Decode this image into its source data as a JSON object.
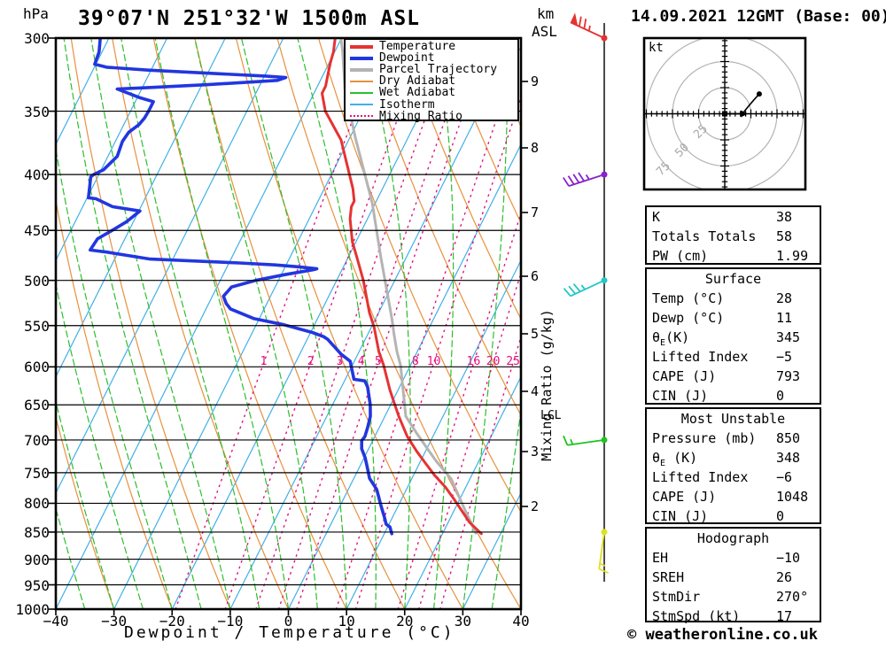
{
  "header": {
    "left_axis_unit": "hPa",
    "title": "39°07'N 251°32'W 1500m ASL",
    "right_axis_unit_line1": "km",
    "right_axis_unit_line2": "ASL",
    "datetime": "14.09.2021 12GMT (Base: 00)"
  },
  "axes": {
    "pressure_ticks": [
      300,
      350,
      400,
      450,
      500,
      550,
      600,
      650,
      700,
      750,
      800,
      850,
      900,
      950,
      1000
    ],
    "temperature_ticks": [
      -40,
      -30,
      -20,
      -10,
      0,
      10,
      20,
      30,
      40
    ],
    "km_ticks": [
      9,
      8,
      7,
      6,
      5,
      4,
      3,
      2
    ],
    "x_label": "Dewpoint / Temperature (°C)",
    "right_label": "Mixing Ratio (g/kg)",
    "lcl_label": "LCL"
  },
  "legend": {
    "items": [
      {
        "label": "Temperature",
        "color": "#e63232",
        "weight": 4,
        "dash": "solid"
      },
      {
        "label": "Dewpoint",
        "color": "#2236df",
        "weight": 4,
        "dash": "solid"
      },
      {
        "label": "Parcel Trajectory",
        "color": "#b4b4b4",
        "weight": 4,
        "dash": "solid"
      },
      {
        "label": "Dry Adiabat",
        "color": "#e8913d",
        "weight": 2,
        "dash": "solid"
      },
      {
        "label": "Wet Adiabat",
        "color": "#2dbe2d",
        "weight": 2,
        "dash": "solid"
      },
      {
        "label": "Isotherm",
        "color": "#42b0e8",
        "weight": 2,
        "dash": "solid"
      },
      {
        "label": "Mixing Ratio",
        "color": "#e4117e",
        "weight": 2,
        "dash": "dotted"
      }
    ]
  },
  "chart_data": {
    "type": "line",
    "subtype": "skew-t-log-p-sounding",
    "title": "39°07'N 251°32'W 1500m ASL",
    "xlabel": "Dewpoint / Temperature (°C)",
    "ylabel": "hPa",
    "pressure_range_hpa": [
      300,
      1000
    ],
    "temperature_range_c": [
      -40,
      40
    ],
    "km_asl_ticks": [
      2,
      3,
      4,
      5,
      6,
      7,
      8,
      9
    ],
    "series": [
      {
        "name": "Temperature",
        "color": "#e63232",
        "points_p_t": [
          [
            853,
            26.7
          ],
          [
            833,
            23.7
          ],
          [
            792,
            18.9
          ],
          [
            773,
            16.5
          ],
          [
            754,
            13.6
          ],
          [
            735,
            11.0
          ],
          [
            717,
            8.5
          ],
          [
            695,
            5.6
          ],
          [
            666,
            2.4
          ],
          [
            645,
            0.2
          ],
          [
            630,
            -1.4
          ],
          [
            598,
            -4.6
          ],
          [
            581,
            -6.6
          ],
          [
            552,
            -9.5
          ],
          [
            535,
            -11.6
          ],
          [
            500,
            -15.4
          ],
          [
            474,
            -18.8
          ],
          [
            461,
            -20.6
          ],
          [
            439,
            -23.0
          ],
          [
            428,
            -23.8
          ],
          [
            423,
            -23.8
          ],
          [
            412,
            -25.1
          ],
          [
            387,
            -28.9
          ],
          [
            372,
            -31.3
          ],
          [
            350,
            -36.5
          ],
          [
            337,
            -38.6
          ],
          [
            332,
            -38.6
          ],
          [
            324,
            -39.2
          ],
          [
            316,
            -39.8
          ],
          [
            309,
            -40.2
          ],
          [
            300,
            -41.1
          ]
        ]
      },
      {
        "name": "Dewpoint",
        "color": "#2236df",
        "points_p_t": [
          [
            853,
            11.3
          ],
          [
            841,
            10.4
          ],
          [
            836,
            9.5
          ],
          [
            825,
            8.7
          ],
          [
            805,
            7.1
          ],
          [
            777,
            4.9
          ],
          [
            759,
            2.7
          ],
          [
            742,
            1.4
          ],
          [
            727,
            0.2
          ],
          [
            713,
            -1.2
          ],
          [
            701,
            -1.9
          ],
          [
            695,
            -1.7
          ],
          [
            682,
            -2.0
          ],
          [
            666,
            -2.5
          ],
          [
            650,
            -3.5
          ],
          [
            626,
            -5.5
          ],
          [
            618,
            -6.5
          ],
          [
            616,
            -8.5
          ],
          [
            593,
            -10.7
          ],
          [
            584,
            -12.9
          ],
          [
            566,
            -16.5
          ],
          [
            563,
            -17.4
          ],
          [
            558,
            -19.7
          ],
          [
            549,
            -25.3
          ],
          [
            542,
            -30.9
          ],
          [
            531,
            -35.8
          ],
          [
            525,
            -37.0
          ],
          [
            517,
            -38.1
          ],
          [
            507,
            -37.5
          ],
          [
            500,
            -33.9
          ],
          [
            494,
            -29.4
          ],
          [
            489,
            -25.0
          ],
          [
            488,
            -24.4
          ],
          [
            486,
            -27.6
          ],
          [
            484,
            -31.9
          ],
          [
            482,
            -38.2
          ],
          [
            480,
            -46.0
          ],
          [
            478,
            -53.9
          ],
          [
            471,
            -62.0
          ],
          [
            469,
            -65.0
          ],
          [
            458,
            -64.7
          ],
          [
            450,
            -62.9
          ],
          [
            442,
            -61.2
          ],
          [
            432,
            -59.8
          ],
          [
            428,
            -64.9
          ],
          [
            421,
            -68.4
          ],
          [
            420,
            -69.8
          ],
          [
            412,
            -70.4
          ],
          [
            402,
            -71.2
          ],
          [
            400,
            -70.9
          ],
          [
            396,
            -69.6
          ],
          [
            385,
            -68.4
          ],
          [
            373,
            -68.8
          ],
          [
            366,
            -68.5
          ],
          [
            360,
            -67.4
          ],
          [
            355,
            -67.0
          ],
          [
            350,
            -66.9
          ],
          [
            343,
            -66.9
          ],
          [
            340,
            -69.7
          ],
          [
            334,
            -74.2
          ],
          [
            333,
            -69.0
          ],
          [
            331,
            -59.3
          ],
          [
            328,
            -47.4
          ],
          [
            326,
            -46.2
          ],
          [
            325,
            -49.8
          ],
          [
            323,
            -60.2
          ],
          [
            321,
            -70.5
          ],
          [
            319,
            -77.9
          ],
          [
            317,
            -80.2
          ],
          [
            309,
            -80.5
          ],
          [
            300,
            -81.5
          ]
        ]
      },
      {
        "name": "Parcel Trajectory",
        "color": "#b4b4b4",
        "points_p_t": [
          [
            852,
            25.7
          ],
          [
            811,
            21.8
          ],
          [
            760,
            16.8
          ],
          [
            732,
            12.7
          ],
          [
            713,
            10.1
          ],
          [
            690,
            6.9
          ],
          [
            666,
            3.6
          ],
          [
            633,
            1.1
          ],
          [
            598,
            -1.7
          ],
          [
            581,
            -3.5
          ],
          [
            560,
            -5.5
          ],
          [
            543,
            -7.1
          ],
          [
            476,
            -14.4
          ],
          [
            425,
            -20.5
          ],
          [
            371,
            -28.9
          ],
          [
            335,
            -34.9
          ],
          [
            309,
            -38.6
          ],
          [
            300,
            -40.1
          ]
        ]
      }
    ],
    "background": {
      "isotherms_c": {
        "min": -120,
        "max": 40,
        "step": 10,
        "color": "#42b0e8"
      },
      "dry_adiabats_theta_c": {
        "min": -40,
        "max": 100,
        "step": 10,
        "color": "#e8913d"
      },
      "wet_adiabats_c": {
        "min": -40,
        "max": 40,
        "step": 5,
        "color": "#2dbe2d"
      },
      "mixing_ratio_g_kg": [
        1,
        2,
        3,
        4,
        5,
        8,
        10,
        16,
        20,
        25
      ],
      "mixing_ratio_color": "#e4117e",
      "grid": "pressure lines every 50 hPa"
    },
    "wind_barbs": [
      {
        "pressure_hpa": 300,
        "speed_kt": 75,
        "color": "#e63232"
      },
      {
        "pressure_hpa": 400,
        "speed_kt": 45,
        "color": "#8822cc"
      },
      {
        "pressure_hpa": 500,
        "speed_kt": 35,
        "color": "#26c6c6"
      },
      {
        "pressure_hpa": 700,
        "speed_kt": 15,
        "color": "#22c222"
      },
      {
        "pressure_hpa": 850,
        "speed_kt": 15,
        "color": "#e0e020"
      }
    ]
  },
  "hodograph": {
    "unit_label": "kt",
    "ring_spacing_kt": 25,
    "ring_labels": [
      "25",
      "50",
      "75"
    ],
    "storm_motion_kt": [
      [
        0,
        0
      ],
      [
        17,
        0
      ]
    ],
    "upper_trace_kt": [
      [
        17,
        0
      ],
      [
        23,
        8
      ],
      [
        33,
        19
      ]
    ]
  },
  "stats_tables": [
    {
      "id": "indices",
      "title": "",
      "rows": [
        [
          "K",
          "38"
        ],
        [
          "Totals Totals",
          "58"
        ],
        [
          "PW (cm)",
          "1.99"
        ]
      ]
    },
    {
      "id": "surface",
      "title": "Surface",
      "rows": [
        [
          "Temp (°C)",
          "28"
        ],
        [
          "Dewp (°C)",
          "11"
        ],
        [
          "θ_E(K)",
          "345"
        ],
        [
          "Lifted Index",
          "−5"
        ],
        [
          "CAPE (J)",
          "793"
        ],
        [
          "CIN (J)",
          "0"
        ]
      ]
    },
    {
      "id": "most-unstable",
      "title": "Most Unstable",
      "rows": [
        [
          "Pressure (mb)",
          "850"
        ],
        [
          "θ_E (K)",
          "348"
        ],
        [
          "Lifted Index",
          "−6"
        ],
        [
          "CAPE (J)",
          "1048"
        ],
        [
          "CIN (J)",
          "0"
        ]
      ]
    },
    {
      "id": "hodograph",
      "title": "Hodograph",
      "rows": [
        [
          "EH",
          "−10"
        ],
        [
          "SREH",
          "26"
        ],
        [
          "StmDir",
          "270°"
        ],
        [
          "StmSpd (kt)",
          "17"
        ]
      ]
    }
  ],
  "footer": {
    "credit": "© weatheronline.co.uk"
  }
}
